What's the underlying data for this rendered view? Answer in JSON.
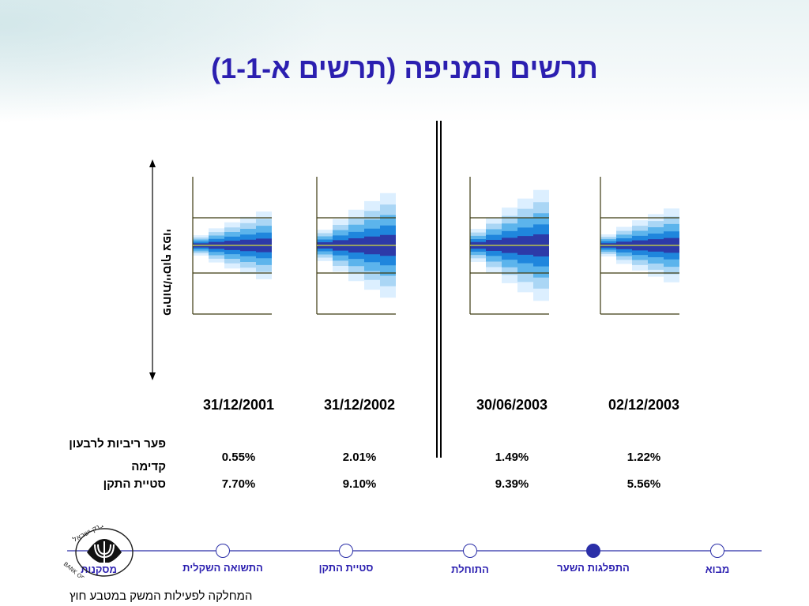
{
  "title": "תרשים המניפה (תרשים א-1-1)",
  "chart_data": {
    "type": "fan",
    "y_axis_label": "פיחות/ייסוף צפוי",
    "dates": [
      "31/12/2001",
      "31/12/2002",
      "30/06/2003",
      "02/12/2003"
    ],
    "rows": [
      {
        "label": "פער ריביות לרבעון קדימה",
        "values": [
          "0.55%",
          "2.01%",
          "1.49%",
          "1.22%"
        ]
      },
      {
        "label": "סטיית התקן",
        "values": [
          "7.70%",
          "9.10%",
          "9.39%",
          "5.56%"
        ]
      }
    ],
    "fan_spread": [
      0.55,
      0.85,
      0.9,
      0.6
    ],
    "colors": {
      "band_outer": "#dcefff",
      "band_2": "#aad6f5",
      "band_3": "#5cb4ec",
      "band_4": "#1f86dd",
      "band_inner": "#2d3aa8",
      "center_line": "#b9c24a",
      "grid": "#3c3a10"
    }
  },
  "nav": {
    "items": [
      {
        "label": "מבוא",
        "active": false
      },
      {
        "label": "התפלגות השער",
        "active": true
      },
      {
        "label": "התוחלת",
        "active": false
      },
      {
        "label": "סטיית התקן",
        "active": false
      },
      {
        "label": "התשואה השקלית",
        "active": false
      },
      {
        "label": "מסקנות",
        "active": false
      }
    ],
    "accent": "#2b2fa8"
  },
  "logo_text": "בנק ישראל BANK OF ISRAEL",
  "footer": "המחלקה לפעילות המשק במטבע חוץ"
}
